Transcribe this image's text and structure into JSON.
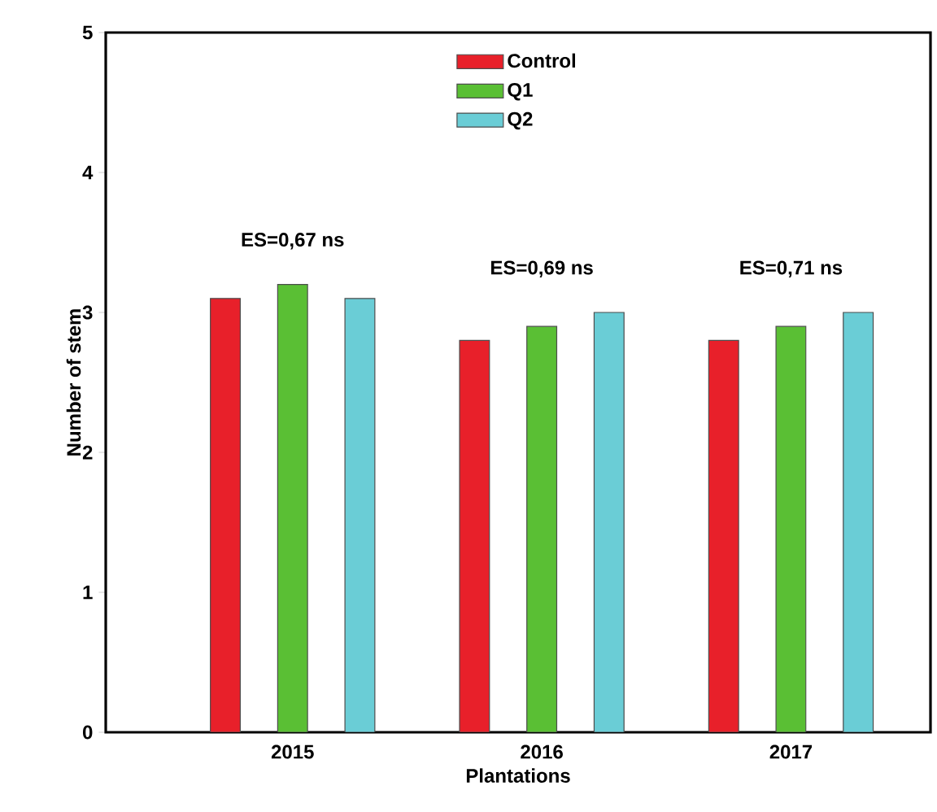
{
  "chart_data": {
    "type": "bar",
    "xlabel": "Plantations",
    "ylabel": "Number of stem",
    "categories": [
      "2015",
      "2016",
      "2017"
    ],
    "series": [
      {
        "name": "Control",
        "color": "#e8202a",
        "values": [
          3.1,
          2.8,
          2.8
        ]
      },
      {
        "name": "Q1",
        "color": "#5abf34",
        "values": [
          3.2,
          2.9,
          2.9
        ]
      },
      {
        "name": "Q2",
        "color": "#6acdd6",
        "values": [
          3.1,
          3.0,
          3.0
        ]
      }
    ],
    "ylim": [
      0,
      5
    ],
    "yticks": [
      0,
      1,
      2,
      3,
      4,
      5
    ],
    "annotations": [
      "ES=0,67 ns",
      "ES=0,69 ns",
      "ES=0,71 ns"
    ],
    "legend": "top",
    "grid": false
  }
}
